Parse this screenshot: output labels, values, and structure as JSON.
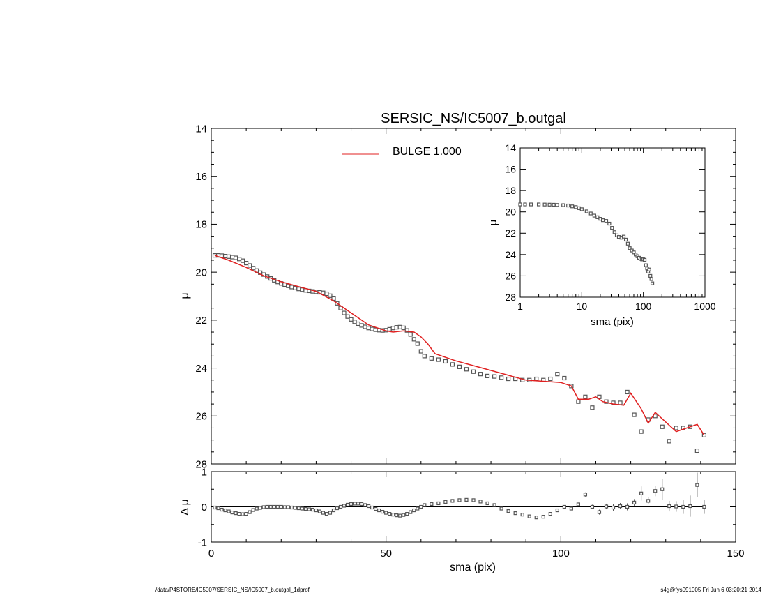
{
  "title": "SERSIC_NS/IC5007_b.outgal",
  "footer": {
    "left": "/data/P4STORE/IC5007/SERSIC_NS/IC5007_b.outgal_1dprof",
    "right": "s4g@fys091005  Fri Jun  6 03:20:21 2014"
  },
  "colors": {
    "model": "#e02020",
    "data": "#555555",
    "axis": "#000000"
  },
  "chart_data": [
    {
      "id": "main",
      "type": "scatter",
      "title": "SERSIC_NS/IC5007_b.outgal",
      "ylabel": "μ",
      "xlim": [
        0,
        150
      ],
      "ylim": [
        28,
        14
      ],
      "y_inverted": true,
      "yticks": [
        14,
        16,
        18,
        20,
        22,
        24,
        26,
        28
      ],
      "legend": {
        "label": "BULGE  1.000",
        "position": "top-center"
      },
      "series": [
        {
          "kind": "points",
          "x": [
            1,
            2,
            3,
            4,
            5,
            6,
            7,
            8,
            9,
            10,
            11,
            12,
            13,
            14,
            15,
            16,
            17,
            18,
            19,
            20,
            21,
            22,
            23,
            24,
            25,
            26,
            27,
            28,
            29,
            30,
            31,
            32,
            33,
            34,
            35,
            36,
            37,
            38,
            39,
            40,
            41,
            42,
            43,
            44,
            45,
            46,
            47,
            48,
            49,
            50,
            51,
            52,
            53,
            54,
            55,
            56,
            57,
            58,
            59,
            60,
            61,
            63,
            65,
            67,
            69,
            71,
            73,
            75,
            77,
            79,
            81,
            83,
            85,
            87,
            89,
            91,
            93,
            95,
            97,
            99,
            101,
            103,
            105,
            107,
            109,
            111,
            113,
            115,
            117,
            119,
            121,
            123,
            125,
            127,
            129,
            131,
            133,
            135,
            137,
            139,
            141
          ],
          "y": [
            19.3,
            19.3,
            19.31,
            19.33,
            19.35,
            19.37,
            19.4,
            19.45,
            19.52,
            19.62,
            19.72,
            19.83,
            19.93,
            20.02,
            20.1,
            20.18,
            20.26,
            20.34,
            20.41,
            20.47,
            20.52,
            20.57,
            20.62,
            20.66,
            20.7,
            20.73,
            20.76,
            20.78,
            20.8,
            20.82,
            20.84,
            20.86,
            20.9,
            20.98,
            21.1,
            21.3,
            21.5,
            21.7,
            21.85,
            21.97,
            22.07,
            22.15,
            22.22,
            22.28,
            22.33,
            22.37,
            22.4,
            22.42,
            22.43,
            22.42,
            22.38,
            22.33,
            22.3,
            22.29,
            22.32,
            22.43,
            22.6,
            22.8,
            22.98,
            23.3,
            23.5,
            23.6,
            23.65,
            23.72,
            23.85,
            23.95,
            24.05,
            24.15,
            24.25,
            24.33,
            24.35,
            24.4,
            24.45,
            24.45,
            24.5,
            24.5,
            24.45,
            24.5,
            24.45,
            24.25,
            24.42,
            24.75,
            25.4,
            25.2,
            25.65,
            25.2,
            25.4,
            25.45,
            25.45,
            25.0,
            25.95,
            26.65,
            26.15,
            26.0,
            26.45,
            27.05,
            26.5,
            26.5,
            26.45,
            27.45,
            26.8
          ]
        },
        {
          "kind": "line",
          "name": "BULGE  1.000",
          "x": [
            1,
            5,
            10,
            15,
            20,
            25,
            30,
            35,
            40,
            45,
            50,
            52,
            55,
            58,
            60,
            62,
            64,
            66,
            70,
            75,
            80,
            85,
            90,
            95,
            100,
            103,
            105,
            108,
            110,
            112,
            115,
            118,
            120,
            123,
            125,
            127,
            130,
            133,
            136,
            139,
            141
          ],
          "y": [
            19.3,
            19.5,
            19.8,
            20.15,
            20.4,
            20.6,
            20.8,
            21.2,
            21.7,
            22.2,
            22.45,
            22.5,
            22.45,
            22.5,
            22.7,
            23.0,
            23.4,
            23.5,
            23.7,
            23.9,
            24.1,
            24.3,
            24.5,
            24.55,
            24.6,
            24.75,
            25.3,
            25.3,
            25.2,
            25.4,
            25.5,
            25.55,
            25.05,
            25.7,
            26.3,
            25.85,
            26.25,
            26.65,
            26.5,
            26.35,
            26.8
          ]
        }
      ]
    },
    {
      "id": "residual",
      "type": "scatter",
      "xlabel": "sma (pix)",
      "ylabel": "Δ μ",
      "xlim": [
        0,
        150
      ],
      "ylim": [
        -1,
        1
      ],
      "xticks": [
        0,
        50,
        100,
        150
      ],
      "yticks": [
        -1,
        0,
        1
      ],
      "series": [
        {
          "kind": "points",
          "x": [
            1,
            2,
            3,
            4,
            5,
            6,
            7,
            8,
            9,
            10,
            11,
            12,
            13,
            14,
            15,
            16,
            17,
            18,
            19,
            20,
            21,
            22,
            23,
            24,
            25,
            26,
            27,
            28,
            29,
            30,
            31,
            32,
            33,
            34,
            35,
            36,
            37,
            38,
            39,
            40,
            41,
            42,
            43,
            44,
            45,
            46,
            47,
            48,
            49,
            50,
            51,
            52,
            53,
            54,
            55,
            56,
            57,
            58,
            59,
            60,
            61,
            63,
            65,
            67,
            69,
            71,
            73,
            75,
            77,
            79,
            81,
            83,
            85,
            87,
            89,
            91,
            93,
            95,
            97,
            99,
            101,
            103,
            105,
            107,
            109,
            111,
            113,
            115,
            117,
            119,
            121,
            123,
            125,
            127,
            129,
            131,
            133,
            135,
            137,
            139,
            141
          ],
          "y": [
            -0.02,
            -0.04,
            -0.08,
            -0.1,
            -0.13,
            -0.16,
            -0.18,
            -0.2,
            -0.21,
            -0.2,
            -0.15,
            -0.09,
            -0.05,
            -0.03,
            -0.01,
            0.0,
            0.0,
            0.0,
            0.0,
            0.0,
            -0.01,
            -0.01,
            -0.02,
            -0.03,
            -0.04,
            -0.05,
            -0.06,
            -0.07,
            -0.08,
            -0.1,
            -0.13,
            -0.17,
            -0.2,
            -0.17,
            -0.1,
            -0.04,
            0.0,
            0.03,
            0.06,
            0.08,
            0.09,
            0.09,
            0.08,
            0.05,
            0.02,
            -0.02,
            -0.06,
            -0.1,
            -0.14,
            -0.17,
            -0.2,
            -0.22,
            -0.24,
            -0.25,
            -0.23,
            -0.2,
            -0.15,
            -0.1,
            -0.05,
            0.0,
            0.05,
            0.08,
            0.1,
            0.14,
            0.17,
            0.19,
            0.2,
            0.19,
            0.15,
            0.1,
            0.05,
            -0.05,
            -0.12,
            -0.18,
            -0.22,
            -0.27,
            -0.3,
            -0.28,
            -0.2,
            -0.1,
            0.0,
            -0.05,
            0.07,
            0.35,
            0.0,
            -0.15,
            0.01,
            -0.02,
            0.02,
            0.0,
            0.12,
            0.38,
            0.17,
            0.45,
            0.5,
            0.02,
            0.01,
            0.0,
            0.02,
            0.62,
            0.0
          ],
          "err": [
            0,
            0,
            0,
            0,
            0,
            0,
            0,
            0,
            0,
            0,
            0,
            0,
            0,
            0,
            0,
            0,
            0,
            0,
            0,
            0,
            0,
            0,
            0,
            0,
            0,
            0,
            0,
            0,
            0,
            0,
            0,
            0,
            0,
            0,
            0,
            0,
            0,
            0,
            0,
            0,
            0,
            0,
            0,
            0,
            0,
            0,
            0,
            0,
            0,
            0,
            0,
            0,
            0,
            0,
            0,
            0,
            0,
            0,
            0,
            0,
            0,
            0,
            0,
            0,
            0,
            0,
            0,
            0,
            0,
            0,
            0,
            0,
            0,
            0,
            0,
            0,
            0,
            0,
            0,
            0,
            0,
            0.03,
            0.05,
            0.06,
            0.06,
            0.07,
            0.08,
            0.09,
            0.09,
            0.1,
            0.1,
            0.2,
            0.1,
            0.15,
            0.3,
            0.15,
            0.15,
            0.2,
            0.3,
            0.35,
            0.2
          ]
        }
      ]
    },
    {
      "id": "inset",
      "type": "scatter",
      "xlabel": "sma (pix)",
      "ylabel": "μ",
      "xscale": "log",
      "xlim": [
        1,
        1000
      ],
      "ylim": [
        28,
        14
      ],
      "y_inverted": true,
      "xticks": [
        1,
        10,
        100,
        1000
      ],
      "yticks": [
        14,
        16,
        18,
        20,
        22,
        24,
        26,
        28
      ],
      "series": [
        {
          "kind": "points",
          "x": [
            1,
            1.2,
            1.5,
            2,
            2.5,
            3,
            3.5,
            4,
            5,
            6,
            7,
            8,
            9,
            10,
            12,
            14,
            16,
            18,
            20,
            22,
            25,
            28,
            31,
            34,
            37,
            40,
            44,
            48,
            52,
            56,
            60,
            65,
            70,
            75,
            80,
            85,
            90,
            95,
            100,
            105,
            110,
            115,
            120,
            125,
            130,
            135,
            140
          ],
          "y": [
            19.3,
            19.3,
            19.3,
            19.3,
            19.31,
            19.32,
            19.33,
            19.35,
            19.37,
            19.4,
            19.48,
            19.55,
            19.65,
            19.75,
            19.95,
            20.15,
            20.35,
            20.5,
            20.65,
            20.78,
            20.85,
            21.1,
            21.5,
            21.9,
            22.2,
            22.35,
            22.42,
            22.32,
            22.6,
            22.98,
            23.4,
            23.62,
            23.8,
            24.0,
            24.15,
            24.3,
            24.4,
            24.45,
            24.45,
            24.5,
            25.0,
            25.3,
            25.6,
            25.4,
            26.0,
            26.3,
            26.7
          ]
        }
      ]
    }
  ]
}
